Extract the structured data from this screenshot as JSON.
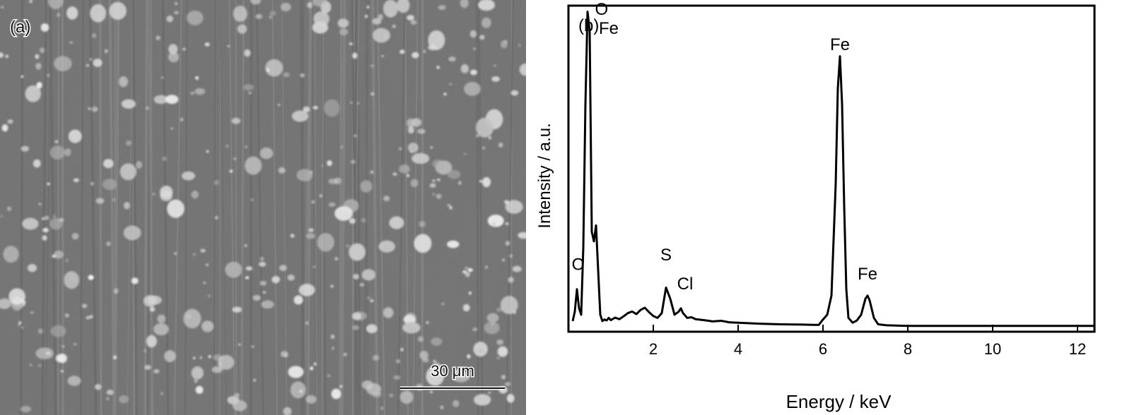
{
  "panel_a": {
    "label": "(a)",
    "scale_bar_label": "30 μm"
  },
  "chart_data": {
    "type": "line",
    "panel_label": "(b)",
    "title": "",
    "xlabel": "Energy / keV",
    "ylabel": "Intensity / a.u.",
    "xlim": [
      0,
      12.4
    ],
    "ylim": [
      0,
      100
    ],
    "xticks": [
      2,
      4,
      6,
      8,
      10,
      12
    ],
    "grid": false,
    "annotations": [
      {
        "text": "C",
        "x": 0.22,
        "y": 18
      },
      {
        "text": "O",
        "x": 0.78,
        "y": 98
      },
      {
        "text": "Fe",
        "x": 0.95,
        "y": 92
      },
      {
        "text": "S",
        "x": 2.3,
        "y": 21
      },
      {
        "text": "Cl",
        "x": 2.75,
        "y": 12
      },
      {
        "text": "Fe",
        "x": 6.4,
        "y": 87
      },
      {
        "text": "Fe",
        "x": 7.05,
        "y": 15
      }
    ],
    "series": [
      {
        "x": [
          0.1,
          0.15,
          0.2,
          0.25,
          0.3,
          0.35,
          0.4,
          0.45,
          0.5,
          0.55,
          0.6,
          0.65,
          0.7,
          0.75,
          0.8,
          0.85,
          0.9,
          0.95,
          1.0,
          1.1,
          1.2,
          1.3,
          1.4,
          1.5,
          1.6,
          1.7,
          1.8,
          1.9,
          2.0,
          2.1,
          2.2,
          2.3,
          2.4,
          2.5,
          2.6,
          2.65,
          2.7,
          2.8,
          2.9,
          3.0,
          3.2,
          3.4,
          3.6,
          3.8,
          4.0,
          4.5,
          5.0,
          5.5,
          5.9,
          6.0,
          6.1,
          6.2,
          6.3,
          6.35,
          6.4,
          6.45,
          6.5,
          6.55,
          6.6,
          6.7,
          6.8,
          6.9,
          7.0,
          7.05,
          7.1,
          7.2,
          7.3,
          7.5,
          8.0,
          9.0,
          10.0,
          11.0,
          12.0,
          12.4
        ],
        "y": [
          2,
          5,
          12,
          6,
          4,
          25,
          70,
          99,
          93,
          30,
          27,
          32,
          18,
          4,
          2,
          2.5,
          2.2,
          3,
          2.3,
          3.1,
          2.6,
          3.5,
          4.5,
          5,
          4.2,
          5.5,
          6.2,
          4.8,
          3.6,
          3.0,
          4.5,
          12.5,
          9.0,
          4.0,
          5.0,
          6.0,
          4.5,
          3.0,
          3.2,
          2.6,
          2.3,
          1.9,
          2.1,
          1.6,
          1.5,
          1.2,
          1.0,
          0.9,
          0.8,
          2.5,
          4,
          10,
          45,
          75,
          85,
          70,
          38,
          12,
          3,
          1.5,
          2.2,
          4,
          9,
          10,
          8.5,
          3,
          1,
          0.7,
          0.5,
          0.5,
          0.5,
          0.5,
          0.5,
          0.5
        ]
      }
    ]
  }
}
